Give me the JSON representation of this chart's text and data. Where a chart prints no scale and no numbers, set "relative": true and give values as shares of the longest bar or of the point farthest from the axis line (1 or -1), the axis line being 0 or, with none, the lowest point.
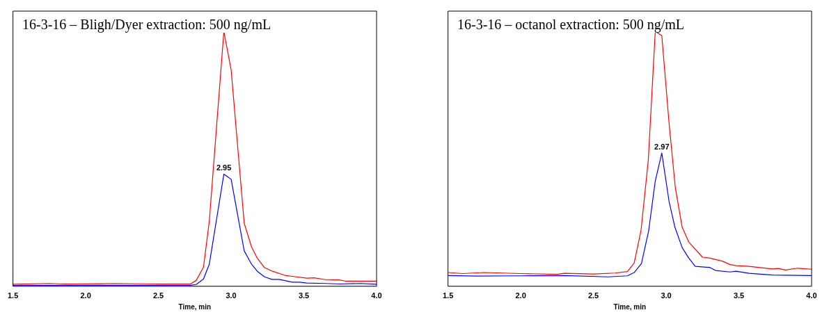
{
  "chart_data": [
    {
      "type": "line",
      "title": "16-3-16 – Bligh/Dyer extraction: 500 ng/mL",
      "xlabel": "Time, min",
      "relative": true,
      "xlim": [
        1.5,
        4.0
      ],
      "xticks": [
        1.5,
        {
          "value": 2,
          "label": "2.0"
        },
        2.5,
        {
          "value": 3,
          "label": "3.0"
        },
        3.5,
        {
          "value": 4,
          "label": "4.0"
        }
      ],
      "grid": false,
      "legend": false,
      "marker": "none",
      "annotations": [
        {
          "text": "2.95",
          "x": 2.95,
          "y": 0.44
        }
      ],
      "series": [
        {
          "color": "#ff0000",
          "x": [
            1.5,
            1.75,
            1.85,
            2.1,
            2.2,
            2.5,
            2.72,
            2.76,
            2.81,
            2.85,
            2.95,
            3.0,
            3.09,
            3.14,
            3.18,
            3.23,
            3.285,
            3.37,
            3.42,
            3.52,
            3.57,
            3.65,
            3.74,
            3.79,
            4.0
          ],
          "values": [
            0.008,
            0.011,
            0.009,
            0.01,
            0.011,
            0.009,
            0.009,
            0.023,
            0.075,
            0.256,
            1,
            0.85,
            0.247,
            0.155,
            0.11,
            0.073,
            0.059,
            0.043,
            0.039,
            0.032,
            0.033,
            0.026,
            0.025,
            0.02,
            0.02
          ]
        },
        {
          "color": "#0000ff",
          "x": [
            1.5,
            2.0,
            2.72,
            2.76,
            2.81,
            2.85,
            2.95,
            3.0,
            3.09,
            3.14,
            3.18,
            3.23,
            3.28,
            3.33,
            3.42,
            3.47,
            3.52,
            3.65,
            3.75,
            3.89,
            4.0
          ],
          "values": [
            0.003,
            0.004,
            0.004,
            0.007,
            0.029,
            0.087,
            0.44,
            0.42,
            0.139,
            0.087,
            0.059,
            0.037,
            0.027,
            0.027,
            0.016,
            0.016,
            0.013,
            0.011,
            0.009,
            0.011,
            0.008
          ]
        }
      ]
    },
    {
      "type": "line",
      "title": "16-3-16 – octanol extraction: 500 ng/mL",
      "xlabel": "Time, min",
      "relative": true,
      "xlim": [
        1.5,
        4.0
      ],
      "xticks": [
        1.5,
        {
          "value": 2,
          "label": "2.0"
        },
        2.5,
        {
          "value": 3,
          "label": "3.0"
        },
        3.5,
        {
          "value": 4,
          "label": "4.0"
        }
      ],
      "grid": false,
      "legend": false,
      "marker": "none",
      "annotations": [
        {
          "text": "2.97",
          "x": 2.97,
          "y": 0.523
        }
      ],
      "series": [
        {
          "color": "#ff0000",
          "x": [
            1.5,
            1.6,
            1.75,
            2.0,
            2.25,
            2.3,
            2.5,
            2.65,
            2.734,
            2.78,
            2.827,
            2.877,
            2.925,
            2.97,
            3.02,
            3.063,
            3.11,
            3.155,
            3.25,
            3.298,
            3.39,
            3.44,
            3.483,
            3.568,
            3.635,
            3.73,
            3.77,
            3.82,
            3.904,
            4.0
          ],
          "values": [
            0.054,
            0.05,
            0.054,
            0.05,
            0.047,
            0.051,
            0.048,
            0.052,
            0.058,
            0.091,
            0.219,
            0.494,
            1,
            0.984,
            0.64,
            0.387,
            0.232,
            0.174,
            0.114,
            0.111,
            0.098,
            0.085,
            0.081,
            0.078,
            0.074,
            0.068,
            0.07,
            0.064,
            0.071,
            0.067
          ]
        },
        {
          "color": "#0000ff",
          "x": [
            1.5,
            1.7,
            2.0,
            2.3,
            2.6,
            2.734,
            2.78,
            2.83,
            2.88,
            2.925,
            2.97,
            3.02,
            3.06,
            3.11,
            3.155,
            3.2,
            3.3,
            3.34,
            3.44,
            3.48,
            3.57,
            3.73,
            4.0
          ],
          "values": [
            0.042,
            0.04,
            0.041,
            0.042,
            0.037,
            0.041,
            0.054,
            0.089,
            0.219,
            0.413,
            0.523,
            0.333,
            0.232,
            0.152,
            0.111,
            0.078,
            0.074,
            0.062,
            0.056,
            0.059,
            0.051,
            0.044,
            0.042
          ]
        }
      ]
    }
  ]
}
